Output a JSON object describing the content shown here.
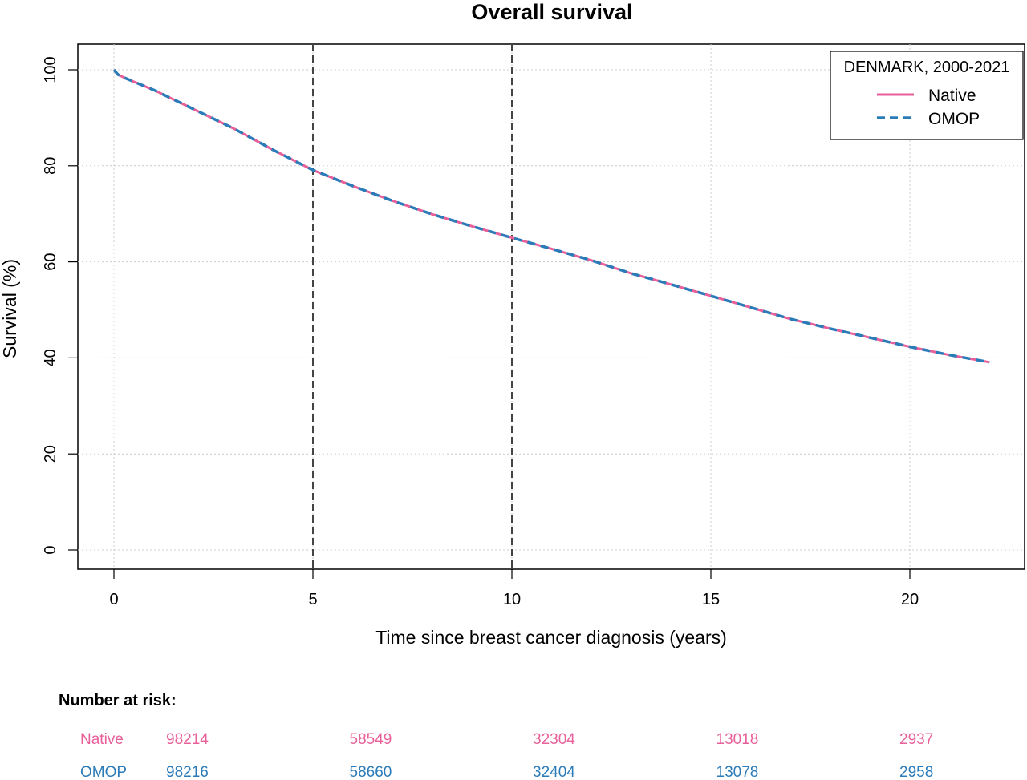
{
  "chart_data": {
    "type": "line",
    "title": "Overall survival",
    "xlabel": "Time since breast cancer diagnosis (years)",
    "ylabel": "Survival (%)",
    "xlim": [
      0,
      22
    ],
    "ylim": [
      0,
      100
    ],
    "x_ticks": [
      0,
      5,
      10,
      15,
      20
    ],
    "y_ticks": [
      0,
      20,
      40,
      60,
      80,
      100
    ],
    "grid": true,
    "vlines": [
      5,
      10
    ],
    "legend": {
      "title": "DENMARK, 2000-2021",
      "position": "top-right"
    },
    "series": [
      {
        "name": "Native",
        "color": "#e7609a",
        "style": "solid",
        "x": [
          0,
          0.1,
          0.3,
          1,
          2,
          3,
          4,
          5,
          6,
          7,
          8,
          9,
          10,
          11,
          12,
          13,
          14,
          15,
          16,
          17,
          18,
          19,
          20,
          21,
          22
        ],
        "y": [
          100,
          99,
          98.2,
          95.8,
          91.8,
          87.8,
          83.3,
          79.1,
          75.8,
          72.7,
          69.9,
          67.4,
          65.0,
          62.7,
          60.3,
          57.6,
          55.3,
          52.9,
          50.5,
          48.1,
          46.1,
          44.2,
          42.3,
          40.6,
          39.1
        ]
      },
      {
        "name": "OMOP",
        "color": "#2b7bb9",
        "style": "dashed",
        "x": [
          0,
          0.1,
          0.3,
          1,
          2,
          3,
          4,
          5,
          6,
          7,
          8,
          9,
          10,
          11,
          12,
          13,
          14,
          15,
          16,
          17,
          18,
          19,
          20,
          21,
          22
        ],
        "y": [
          100,
          99,
          98.2,
          95.8,
          91.8,
          87.8,
          83.3,
          79.1,
          75.8,
          72.7,
          69.9,
          67.4,
          65.0,
          62.7,
          60.3,
          57.6,
          55.3,
          52.9,
          50.5,
          48.1,
          46.1,
          44.2,
          42.3,
          40.6,
          39.1
        ]
      }
    ]
  },
  "risk_table": {
    "heading": "Number at risk:",
    "times": [
      0,
      5,
      10,
      15,
      20
    ],
    "rows": [
      {
        "name": "Native",
        "color": "#e7609a",
        "values": [
          "98214",
          "58549",
          "32304",
          "13018",
          "2937"
        ]
      },
      {
        "name": "OMOP",
        "color": "#2b7bb9",
        "values": [
          "98216",
          "58660",
          "32404",
          "13078",
          "2958"
        ]
      }
    ]
  }
}
